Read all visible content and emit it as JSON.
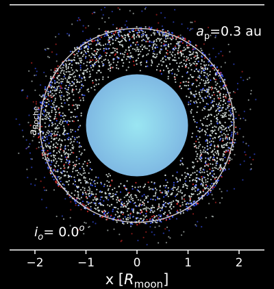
{
  "chart_data": {
    "type": "scatter",
    "title": "",
    "xlabel": "x [R_moon]",
    "xlabel_parts": {
      "prefix": "x [",
      "symbol": "R",
      "subscript": "moon",
      "suffix": "]"
    },
    "ylabel": "",
    "xlim": [
      -2.5,
      2.5
    ],
    "x_ticks": [
      -2,
      -1,
      0,
      1,
      2
    ],
    "x_tick_labels": [
      "−2",
      "−1",
      "0",
      "1",
      "2"
    ],
    "grid": false,
    "background": "#000000",
    "annotations": {
      "ap": {
        "symbol": "a",
        "subscript": "p",
        "rest": "=0.3 au"
      },
      "inclination": {
        "symbol": "i",
        "subscript": "o",
        "rest": "= 0.0",
        "superscript": "o"
      },
      "roche": {
        "symbol": "a",
        "subscript": "Roche"
      }
    },
    "moon": {
      "radius": 1.0,
      "color": "#87d6f0"
    },
    "roche_radius": 1.9,
    "ring": {
      "inner_radius": 1.05,
      "outer_radius": 1.95
    },
    "particle_colors": [
      "#d9e4e1",
      "#3b57ff",
      "#e02b2b"
    ],
    "colors": {
      "axis": "#ffffff",
      "roche_circle": "#d8d2d0"
    }
  }
}
